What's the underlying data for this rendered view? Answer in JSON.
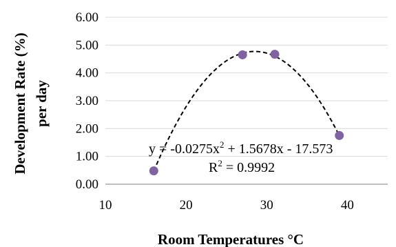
{
  "chart_data": {
    "type": "scatter",
    "xlabel": "Room Temperatures °C",
    "ylabel_lines": [
      "Development Rate (%)",
      "per day"
    ],
    "xlim": [
      10,
      45
    ],
    "ylim": [
      0,
      6
    ],
    "x_ticks": [
      "10",
      "20",
      "30",
      "40"
    ],
    "x_tick_values": [
      10,
      20,
      30,
      40
    ],
    "y_ticks": [
      "0.00",
      "1.00",
      "2.00",
      "3.00",
      "4.00",
      "5.00",
      "6.00"
    ],
    "y_tick_values": [
      0,
      1,
      2,
      3,
      4,
      5,
      6
    ],
    "grid": "horizontal",
    "marker_color": "#8064a2",
    "trendline_color": "#000000",
    "points": [
      {
        "x": 16,
        "y": 0.48
      },
      {
        "x": 27,
        "y": 4.65
      },
      {
        "x": 31,
        "y": 4.67
      },
      {
        "x": 39,
        "y": 1.75
      }
    ],
    "trendline": {
      "type": "polynomial",
      "a": -0.0275,
      "b": 1.5678,
      "c": -17.573,
      "x_range": [
        16,
        39
      ]
    },
    "equation_parts": [
      "y = -0.0275x",
      "2",
      " + 1.5678x - 17.573"
    ],
    "r2_parts": [
      "R",
      "2",
      " = 0.9992"
    ]
  }
}
